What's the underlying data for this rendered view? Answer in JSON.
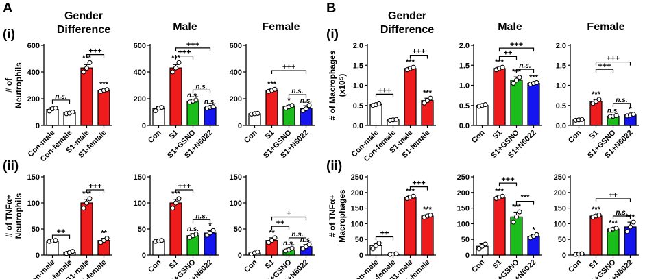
{
  "figure": {
    "panels": [
      "A",
      "B"
    ],
    "rows": [
      "(i)",
      "(ii)"
    ],
    "columns": [
      [
        "Gender",
        "Difference"
      ],
      [
        "Male"
      ],
      [
        "Female"
      ]
    ]
  },
  "chart_data": [
    {
      "type": "bar",
      "panel": "A",
      "row": "(i)",
      "column": "Gender Difference",
      "ylabel": [
        "# of",
        "Neutrophils"
      ],
      "ylim": [
        0,
        600
      ],
      "yticks": [
        "0",
        "200",
        "400",
        "600"
      ],
      "categories": [
        "Con-male",
        "Con-female",
        "S1-male",
        "S1-female"
      ],
      "values": [
        120,
        95,
        430,
        262
      ],
      "errors": [
        15,
        8,
        25,
        8
      ],
      "points": [
        [
          108,
          125,
          130
        ],
        [
          88,
          92,
          100
        ],
        [
          400,
          428,
          470
        ],
        [
          255,
          262,
          268
        ]
      ],
      "colors": [
        "#ffffff",
        "#ffffff",
        "#ee1c1c",
        "#ee1c1c"
      ],
      "bar_labels": [
        "",
        "",
        "***",
        "***"
      ],
      "brackets": [
        {
          "from": 0,
          "to": 1,
          "y": 190,
          "label": "n.s."
        },
        {
          "from": 2,
          "to": 3,
          "y": 530,
          "label": "+++"
        }
      ]
    },
    {
      "type": "bar",
      "panel": "A",
      "row": "(i)",
      "column": "Male",
      "ylabel": [],
      "ylim": [
        0,
        600
      ],
      "yticks": [
        "0",
        "200",
        "400",
        "600"
      ],
      "categories": [
        "Con",
        "S1",
        "S1+GSNO",
        "S1+N6022"
      ],
      "values": [
        125,
        430,
        182,
        136
      ],
      "errors": [
        15,
        25,
        8,
        6
      ],
      "points": [
        [
          110,
          130,
          135
        ],
        [
          400,
          430,
          470
        ],
        [
          175,
          182,
          190
        ],
        [
          130,
          136,
          140
        ]
      ],
      "colors": [
        "#ffffff",
        "#ee1c1c",
        "#1bbd1b",
        "#1515f0"
      ],
      "bar_labels": [
        "",
        "***",
        "n.s.",
        "n.s."
      ],
      "brackets": [
        {
          "from": 1,
          "to": 3,
          "y": 580,
          "label": "+++"
        },
        {
          "from": 1,
          "to": 2,
          "y": 520,
          "label": "+++"
        },
        {
          "from": 2,
          "to": 3,
          "y": 265,
          "label": "n.s."
        }
      ]
    },
    {
      "type": "bar",
      "panel": "A",
      "row": "(i)",
      "column": "Female",
      "ylabel": [],
      "ylim": [
        0,
        600
      ],
      "yticks": [
        "0",
        "200",
        "400",
        "600"
      ],
      "categories": [
        "Con",
        "S1",
        "S1+GSNO",
        "S1+N6022"
      ],
      "values": [
        88,
        262,
        140,
        128
      ],
      "errors": [
        5,
        10,
        10,
        20
      ],
      "points": [
        [
          85,
          88,
          90
        ],
        [
          255,
          262,
          270
        ],
        [
          130,
          140,
          150
        ],
        [
          110,
          125,
          150
        ]
      ],
      "colors": [
        "#ffffff",
        "#ee1c1c",
        "#1bbd1b",
        "#1515f0"
      ],
      "bar_labels": [
        "",
        "***",
        "*",
        "n.s."
      ],
      "brackets": [
        {
          "from": 1,
          "to": 3,
          "y": 410,
          "label": "+++"
        },
        {
          "from": 2,
          "to": 3,
          "y": 230,
          "label": "n.s."
        }
      ]
    },
    {
      "type": "bar",
      "panel": "A",
      "row": "(ii)",
      "column": "Gender Difference",
      "ylabel": [
        "# of TNFα+",
        "Neutrophils"
      ],
      "ylim": [
        0,
        150
      ],
      "yticks": [
        "0",
        "50",
        "100",
        "150"
      ],
      "categories": [
        "Con-male",
        "Con-female",
        "S1-male",
        "S1-female"
      ],
      "values": [
        27,
        5,
        100,
        28
      ],
      "errors": [
        2,
        2,
        7,
        4
      ],
      "points": [
        [
          26,
          27,
          28
        ],
        [
          3,
          5,
          7
        ],
        [
          90,
          100,
          108
        ],
        [
          24,
          28,
          32
        ]
      ],
      "colors": [
        "#ffffff",
        "#ffffff",
        "#ee1c1c",
        "#ee1c1c"
      ],
      "bar_labels": [
        "",
        "",
        "***",
        "**"
      ],
      "brackets": [
        {
          "from": 0,
          "to": 1,
          "y": 38,
          "label": "++"
        },
        {
          "from": 2,
          "to": 3,
          "y": 125,
          "label": "+++"
        }
      ]
    },
    {
      "type": "bar",
      "panel": "A",
      "row": "(ii)",
      "column": "Male",
      "ylabel": [],
      "ylim": [
        0,
        150
      ],
      "yticks": [
        "0",
        "50",
        "100",
        "150"
      ],
      "categories": [
        "Con",
        "S1",
        "S1+GSNO",
        "S1+N6022"
      ],
      "values": [
        27,
        100,
        37,
        42
      ],
      "errors": [
        2,
        7,
        4,
        5
      ],
      "points": [
        [
          26,
          27,
          28
        ],
        [
          90,
          100,
          108
        ],
        [
          34,
          37,
          40
        ],
        [
          38,
          42,
          47
        ]
      ],
      "colors": [
        "#ffffff",
        "#ee1c1c",
        "#1bbd1b",
        "#1515f0"
      ],
      "bar_labels": [
        "",
        "***",
        "n.s.",
        "*"
      ],
      "brackets": [
        {
          "from": 1,
          "to": 2,
          "y": 125,
          "label": "+++"
        },
        {
          "from": 2,
          "to": 3,
          "y": 68,
          "label": "n.s."
        }
      ]
    },
    {
      "type": "bar",
      "panel": "A",
      "row": "(ii)",
      "column": "Female",
      "ylabel": [],
      "ylim": [
        0,
        150
      ],
      "yticks": [
        "0",
        "50",
        "100",
        "150"
      ],
      "categories": [
        "Con",
        "S1",
        "S1+GSNO",
        "S1+N6022"
      ],
      "values": [
        4,
        28,
        10,
        16
      ],
      "errors": [
        2,
        5,
        3,
        4
      ],
      "points": [
        [
          2,
          4,
          6
        ],
        [
          24,
          28,
          33
        ],
        [
          8,
          10,
          13
        ],
        [
          12,
          16,
          20
        ]
      ],
      "colors": [
        "#ffffff",
        "#ee1c1c",
        "#1bbd1b",
        "#1515f0"
      ],
      "bar_labels": [
        "",
        "**",
        "n.s.",
        "n.s."
      ],
      "brackets": [
        {
          "from": 1,
          "to": 3,
          "y": 73,
          "label": "+"
        },
        {
          "from": 1,
          "to": 2,
          "y": 55,
          "label": "++"
        },
        {
          "from": 2,
          "to": 3,
          "y": 33,
          "label": "n.s."
        }
      ]
    },
    {
      "type": "bar",
      "panel": "B",
      "row": "(i)",
      "column": "Gender Difference",
      "ylabel": [
        "# of Macrophages",
        "(x10⁵)"
      ],
      "ylim": [
        0,
        2.0
      ],
      "yticks": [
        "0.0",
        "0.5",
        "1.0",
        "1.5",
        "2.0"
      ],
      "categories": [
        "Con-male",
        "Con-female",
        "S1-male",
        "S1-female"
      ],
      "values": [
        0.52,
        0.14,
        1.42,
        0.62
      ],
      "errors": [
        0.02,
        0.01,
        0.03,
        0.06
      ],
      "points": [
        [
          0.5,
          0.52,
          0.54
        ],
        [
          0.13,
          0.14,
          0.15
        ],
        [
          1.39,
          1.42,
          1.45
        ],
        [
          0.56,
          0.62,
          0.68
        ]
      ],
      "colors": [
        "#ffffff",
        "#ffffff",
        "#ee1c1c",
        "#ee1c1c"
      ],
      "bar_labels": [
        "",
        "",
        "***",
        "***"
      ],
      "brackets": [
        {
          "from": 0,
          "to": 1,
          "y": 0.78,
          "label": "+++"
        },
        {
          "from": 2,
          "to": 3,
          "y": 1.75,
          "label": "+++"
        }
      ]
    },
    {
      "type": "bar",
      "panel": "B",
      "row": "(i)",
      "column": "Male",
      "ylabel": [],
      "ylim": [
        0,
        2.0
      ],
      "yticks": [
        "0.0",
        "0.5",
        "1.0",
        "1.5",
        "2.0"
      ],
      "categories": [
        "Con",
        "S1",
        "S1+GSNO",
        "S1+N6022"
      ],
      "values": [
        0.5,
        1.42,
        1.13,
        1.05
      ],
      "errors": [
        0.02,
        0.03,
        0.08,
        0.02
      ],
      "points": [
        [
          0.48,
          0.5,
          0.52
        ],
        [
          1.39,
          1.42,
          1.45
        ],
        [
          1.05,
          1.13,
          1.2
        ],
        [
          1.03,
          1.05,
          1.07
        ]
      ],
      "colors": [
        "#ffffff",
        "#ee1c1c",
        "#1bbd1b",
        "#1515f0"
      ],
      "bar_labels": [
        "",
        "***",
        "***",
        "***"
      ],
      "brackets": [
        {
          "from": 1,
          "to": 3,
          "y": 1.93,
          "label": "+++"
        },
        {
          "from": 1,
          "to": 2,
          "y": 1.72,
          "label": "++"
        },
        {
          "from": 2,
          "to": 3,
          "y": 1.4,
          "label": "n.s."
        }
      ]
    },
    {
      "type": "bar",
      "panel": "B",
      "row": "(i)",
      "column": "Female",
      "ylabel": [],
      "ylim": [
        0,
        2.0
      ],
      "yticks": [
        "0.0",
        "0.5",
        "1.0",
        "1.5",
        "2.0"
      ],
      "categories": [
        "Con",
        "S1",
        "S1+GSNO",
        "S1+N6022"
      ],
      "values": [
        0.14,
        0.6,
        0.23,
        0.26
      ],
      "errors": [
        0.01,
        0.05,
        0.02,
        0.02
      ],
      "points": [
        [
          0.13,
          0.14,
          0.15
        ],
        [
          0.55,
          0.6,
          0.65
        ],
        [
          0.22,
          0.23,
          0.25
        ],
        [
          0.24,
          0.26,
          0.28
        ]
      ],
      "colors": [
        "#ffffff",
        "#ee1c1c",
        "#1bbd1b",
        "#1515f0"
      ],
      "bar_labels": [
        "",
        "***",
        "n.s.",
        "*"
      ],
      "brackets": [
        {
          "from": 1,
          "to": 3,
          "y": 1.58,
          "label": "+++"
        },
        {
          "from": 1,
          "to": 2,
          "y": 1.4,
          "label": "+++"
        },
        {
          "from": 2,
          "to": 3,
          "y": 0.55,
          "label": "n.s."
        }
      ]
    },
    {
      "type": "bar",
      "panel": "B",
      "row": "(ii)",
      "column": "Gender Difference",
      "ylabel": [
        "# of TNFα+",
        "Macrophages"
      ],
      "ylim": [
        0,
        250
      ],
      "yticks": [
        "0",
        "50",
        "100",
        "150",
        "200",
        "250"
      ],
      "categories": [
        "Con-male",
        "Con-female",
        "S1-male",
        "S1-female"
      ],
      "values": [
        30,
        3,
        185,
        125
      ],
      "errors": [
        8,
        1,
        4,
        4
      ],
      "points": [
        [
          20,
          30,
          38
        ],
        [
          2,
          3,
          4
        ],
        [
          181,
          185,
          188
        ],
        [
          121,
          125,
          128
        ]
      ],
      "colors": [
        "#ffffff",
        "#ffffff",
        "#ee1c1c",
        "#ee1c1c"
      ],
      "bar_labels": [
        "",
        "",
        "***",
        "***"
      ],
      "brackets": [
        {
          "from": 0,
          "to": 1,
          "y": 58,
          "label": "++"
        },
        {
          "from": 2,
          "to": 3,
          "y": 218,
          "label": "+++"
        }
      ]
    },
    {
      "type": "bar",
      "panel": "B",
      "row": "(ii)",
      "column": "Male",
      "ylabel": [],
      "ylim": [
        0,
        250
      ],
      "yticks": [
        "0",
        "50",
        "100",
        "150",
        "200",
        "250"
      ],
      "categories": [
        "Con",
        "S1",
        "S1+GSNO",
        "S1+N6022"
      ],
      "values": [
        28,
        185,
        122,
        60
      ],
      "errors": [
        8,
        4,
        15,
        5
      ],
      "points": [
        [
          20,
          28,
          35
        ],
        [
          181,
          185,
          188
        ],
        [
          105,
          122,
          138
        ],
        [
          55,
          60,
          65
        ]
      ],
      "colors": [
        "#ffffff",
        "#ee1c1c",
        "#1bbd1b",
        "#1515f0"
      ],
      "bar_labels": [
        "",
        "***",
        "***",
        "*"
      ],
      "brackets": [
        {
          "from": 1,
          "to": 2,
          "y": 230,
          "label": "+++"
        },
        {
          "from": 2,
          "to": 3,
          "y": 172,
          "label": "***"
        }
      ]
    },
    {
      "type": "bar",
      "panel": "B",
      "row": "(ii)",
      "column": "Female",
      "ylabel": [],
      "ylim": [
        0,
        250
      ],
      "yticks": [
        "0",
        "50",
        "100",
        "150",
        "200",
        "250"
      ],
      "categories": [
        "Con",
        "S1",
        "S1+GSNO",
        "S1+N6022"
      ],
      "values": [
        3,
        125,
        83,
        90
      ],
      "errors": [
        1,
        4,
        4,
        15
      ],
      "points": [
        [
          2,
          3,
          4
        ],
        [
          121,
          125,
          128
        ],
        [
          80,
          83,
          86
        ],
        [
          75,
          90,
          105
        ]
      ],
      "colors": [
        "#ffffff",
        "#ee1c1c",
        "#1bbd1b",
        "#1515f0"
      ],
      "bar_labels": [
        "",
        "***",
        "***",
        "***"
      ],
      "brackets": [
        {
          "from": 1,
          "to": 3,
          "y": 180,
          "label": "++"
        },
        {
          "from": 2,
          "to": 3,
          "y": 125,
          "label": "n.s."
        }
      ]
    }
  ]
}
